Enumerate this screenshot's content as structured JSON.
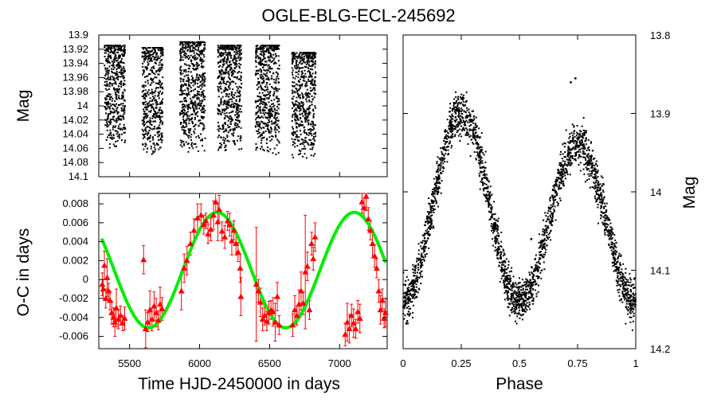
{
  "title": "OGLE-BLG-ECL-245692",
  "colors": {
    "points": "#000000",
    "oc_points": "#ff0000",
    "fit": "#00ee00",
    "frame": "#000000"
  },
  "chart_data": [
    {
      "name": "light-curve-time",
      "type": "scatter",
      "xlabel": "",
      "ylabel": "Mag",
      "xlim": [
        5280,
        7340
      ],
      "ylim": [
        14.1,
        13.9
      ],
      "yticks": [
        13.9,
        13.92,
        13.94,
        13.96,
        13.98,
        14,
        14.02,
        14.04,
        14.06,
        14.08,
        14.1
      ],
      "ytick_labels": [
        "13.9",
        "13.92",
        "13.94",
        "13.96",
        "13.98",
        "14",
        "14.02",
        "14.04",
        "14.06",
        "14.08",
        "14.1"
      ],
      "seasons": [
        {
          "start": 5320,
          "end": 5470,
          "mag_min": 13.915,
          "mag_max": 14.06
        },
        {
          "start": 5590,
          "end": 5740,
          "mag_min": 13.918,
          "mag_max": 14.07
        },
        {
          "start": 5860,
          "end": 6040,
          "mag_min": 13.91,
          "mag_max": 14.065
        },
        {
          "start": 6130,
          "end": 6300,
          "mag_min": 13.915,
          "mag_max": 14.065
        },
        {
          "start": 6400,
          "end": 6570,
          "mag_min": 13.915,
          "mag_max": 14.07
        },
        {
          "start": 6660,
          "end": 6830,
          "mag_min": 13.925,
          "mag_max": 14.075
        }
      ]
    },
    {
      "name": "oc-diagram",
      "type": "scatter",
      "xlabel": "Time HJD-2450000 in days",
      "ylabel": "O-C in days",
      "xlim": [
        5280,
        7340
      ],
      "ylim": [
        -0.0073,
        0.0091
      ],
      "xticks": [
        5500,
        6000,
        6500,
        7000
      ],
      "xtick_labels": [
        "5500",
        "6000",
        "6500",
        "7000"
      ],
      "yticks": [
        -0.006,
        -0.004,
        -0.002,
        0,
        0.002,
        0.004,
        0.006,
        0.008
      ],
      "ytick_labels": [
        "-0.006",
        "-0.004",
        "-0.002",
        "0",
        "0.002",
        "0.004",
        "0.006",
        "0.008"
      ],
      "fit": {
        "amplitude": 0.0061,
        "period": 980,
        "peak_time": 6125,
        "offset": 0.001,
        "x_start": 5300,
        "x_end": 7330
      },
      "points": [
        [
          5305,
          -0.0005,
          0.0012
        ],
        [
          5312,
          -0.001,
          0.001
        ],
        [
          5320,
          0.0015,
          0.0015
        ],
        [
          5330,
          -0.002,
          0.001
        ],
        [
          5340,
          0.0002,
          0.002
        ],
        [
          5350,
          -0.0012,
          0.0008
        ],
        [
          5360,
          -0.0022,
          0.001
        ],
        [
          5372,
          -0.0035,
          0.0012
        ],
        [
          5385,
          -0.004,
          0.001
        ],
        [
          5395,
          -0.0045,
          0.0015
        ],
        [
          5405,
          -0.003,
          0.002
        ],
        [
          5420,
          -0.0042,
          0.001
        ],
        [
          5435,
          -0.0038,
          0.001
        ],
        [
          5450,
          -0.0046,
          0.0008
        ],
        [
          5465,
          -0.0041,
          0.0012
        ],
        [
          5600,
          0.0021,
          0.0015
        ],
        [
          5615,
          -0.0052,
          0.002
        ],
        [
          5630,
          -0.0045,
          0.001
        ],
        [
          5645,
          -0.0032,
          0.002
        ],
        [
          5660,
          -0.0042,
          0.0012
        ],
        [
          5675,
          -0.0028,
          0.0015
        ],
        [
          5690,
          -0.0035,
          0.0015
        ],
        [
          5705,
          -0.0043,
          0.001
        ],
        [
          5718,
          -0.0026,
          0.0018
        ],
        [
          5732,
          -0.0031,
          0.0012
        ],
        [
          5870,
          -0.0012,
          0.002
        ],
        [
          5890,
          0.0012,
          0.0015
        ],
        [
          5910,
          0.002,
          0.0015
        ],
        [
          5935,
          0.0038,
          0.0012
        ],
        [
          5960,
          0.0052,
          0.0012
        ],
        [
          5985,
          0.0065,
          0.0015
        ],
        [
          6010,
          0.0068,
          0.0012
        ],
        [
          6030,
          0.0058,
          0.001
        ],
        [
          6045,
          0.0062,
          0.0008
        ],
        [
          6060,
          0.0048,
          0.001
        ],
        [
          6080,
          0.0053,
          0.0012
        ],
        [
          6100,
          0.0068,
          0.0015
        ],
        [
          6115,
          0.0082,
          0.0012
        ],
        [
          6130,
          0.0061,
          0.002
        ],
        [
          6140,
          0.0074,
          0.0015
        ],
        [
          6160,
          0.0051,
          0.001
        ],
        [
          6180,
          0.0045,
          0.0012
        ],
        [
          6200,
          0.0062,
          0.001
        ],
        [
          6215,
          0.0058,
          0.0012
        ],
        [
          6230,
          0.0041,
          0.0015
        ],
        [
          6245,
          0.0052,
          0.001
        ],
        [
          6260,
          0.0038,
          0.0012
        ],
        [
          6275,
          0.0029,
          0.001
        ],
        [
          6290,
          0.0012,
          0.0015
        ],
        [
          6295,
          -0.0018,
          0.002
        ],
        [
          6405,
          -0.0005,
          0.006
        ],
        [
          6420,
          -0.0012,
          0.0012
        ],
        [
          6435,
          -0.0024,
          0.0015
        ],
        [
          6450,
          -0.0042,
          0.0012
        ],
        [
          6465,
          -0.0038,
          0.001
        ],
        [
          6480,
          -0.0044,
          0.001
        ],
        [
          6495,
          -0.0035,
          0.0012
        ],
        [
          6510,
          -0.0032,
          0.001
        ],
        [
          6525,
          -0.0034,
          0.0015
        ],
        [
          6540,
          -0.0045,
          0.002
        ],
        [
          6555,
          -0.0018,
          0.0015
        ],
        [
          6568,
          -0.0048,
          0.001
        ],
        [
          6665,
          -0.0048,
          0.0012
        ],
        [
          6680,
          -0.0032,
          0.0015
        ],
        [
          6695,
          -0.0038,
          0.001
        ],
        [
          6710,
          -0.0026,
          0.0015
        ],
        [
          6725,
          -0.0012,
          0.002
        ],
        [
          6740,
          -0.0025,
          0.0012
        ],
        [
          6755,
          0.0008,
          0.006
        ],
        [
          6770,
          0.0014,
          0.0015
        ],
        [
          6785,
          -0.0032,
          0.001
        ],
        [
          6800,
          0.0038,
          0.0012
        ],
        [
          6812,
          0.0022,
          0.0012
        ],
        [
          6825,
          0.0045,
          0.0015
        ],
        [
          7040,
          -0.0058,
          0.0012
        ],
        [
          7055,
          -0.0045,
          0.002
        ],
        [
          7070,
          -0.0052,
          0.0015
        ],
        [
          7085,
          -0.0038,
          0.0012
        ],
        [
          7100,
          -0.0046,
          0.0015
        ],
        [
          7115,
          -0.0052,
          0.001
        ],
        [
          7130,
          -0.0034,
          0.0012
        ],
        [
          7145,
          -0.0041,
          0.0015
        ],
        [
          7160,
          0.0082,
          0.0012
        ],
        [
          7175,
          0.0076,
          0.001
        ],
        [
          7190,
          0.0088,
          0.0015
        ],
        [
          7205,
          0.0064,
          0.0012
        ],
        [
          7220,
          0.0052,
          0.001
        ],
        [
          7235,
          0.0038,
          0.0015
        ],
        [
          7250,
          0.0025,
          0.0012
        ],
        [
          7265,
          0.0012,
          0.001
        ],
        [
          7280,
          -0.0012,
          0.0012
        ],
        [
          7292,
          -0.0032,
          0.0015
        ],
        [
          7305,
          -0.0022,
          0.0012
        ],
        [
          7318,
          -0.0041,
          0.001
        ],
        [
          7328,
          -0.0035,
          0.0015
        ]
      ]
    },
    {
      "name": "phased-light-curve",
      "type": "scatter",
      "xlabel": "Phase",
      "ylabel": "Mag",
      "xlim": [
        0,
        1
      ],
      "ylim": [
        14.2,
        13.8
      ],
      "xticks": [
        0,
        0.25,
        0.5,
        0.75,
        1
      ],
      "xtick_labels": [
        "0",
        "0.25",
        "0.5",
        "0.75",
        "1"
      ],
      "yticks": [
        13.8,
        13.9,
        14,
        14.1,
        14.2
      ],
      "ytick_labels": [
        "13.8",
        "13.9",
        "14",
        "14.1",
        "14.2"
      ],
      "curve": {
        "base": 14.14,
        "primary_depth": 0.245,
        "secondary_depth": 0.205,
        "secondary_phase_width": 0.25,
        "scatter": 0.018
      },
      "outliers": [
        [
          0.72,
          13.86
        ],
        [
          0.74,
          13.855
        ],
        [
          0.55,
          14.06
        ],
        [
          0.15,
          14.0
        ],
        [
          0.9,
          14.09
        ]
      ]
    }
  ]
}
